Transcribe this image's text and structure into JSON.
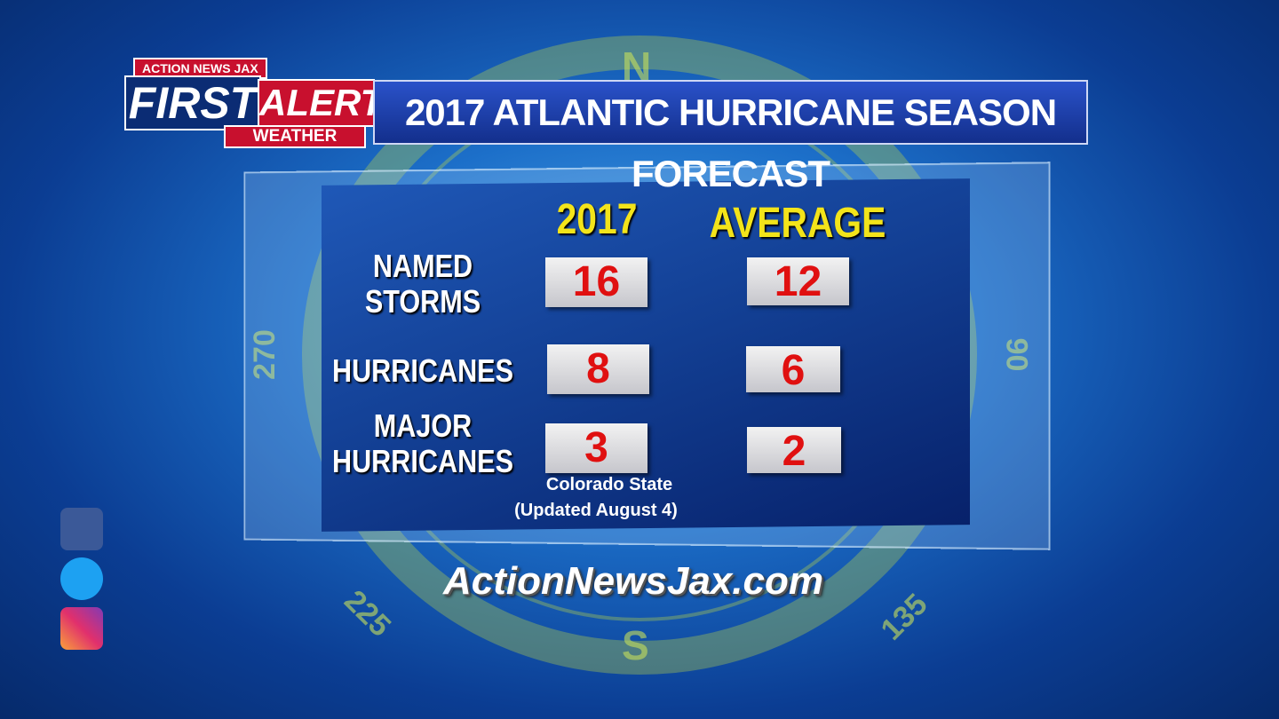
{
  "logo": {
    "network": "ACTION NEWS JAX",
    "first": "FIRST",
    "alert": "ALERT",
    "weather": "WEATHER"
  },
  "header": {
    "title": "2017 ATLANTIC HURRICANE SEASON FORECAST"
  },
  "table": {
    "columns": [
      "2017",
      "AVERAGE"
    ],
    "rows": [
      {
        "label": "NAMED STORMS",
        "values": [
          16,
          12
        ]
      },
      {
        "label": "HURRICANES",
        "values": [
          8,
          6
        ]
      },
      {
        "label": "MAJOR HURRICANES",
        "values": [
          3,
          2
        ]
      }
    ]
  },
  "source": {
    "line1": "Colorado State",
    "line2": "(Updated August 4)"
  },
  "website": "ActionNewsJax.com",
  "compass": {
    "n": "N",
    "w": "270",
    "e": "90",
    "sw": "225",
    "se": "135",
    "s": "S"
  }
}
